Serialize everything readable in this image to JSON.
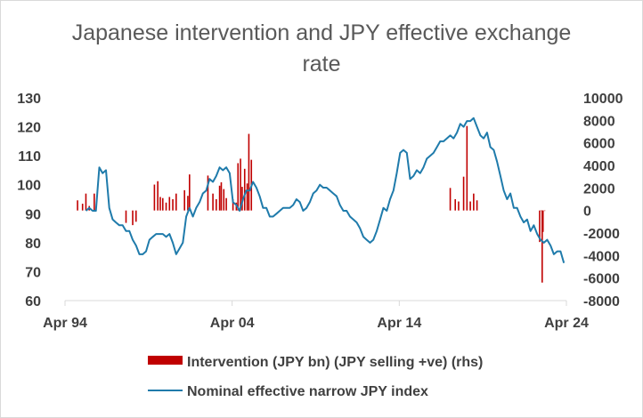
{
  "chart_data": {
    "type": "line",
    "title": "Japanese intervention and JPY effective exchange rate",
    "title_lines": [
      "Japanese intervention and JPY effective exchange",
      "rate"
    ],
    "x_range": [
      1994.25,
      2024.25
    ],
    "x_ticks": [
      {
        "value": 1994.25,
        "label": "Apr 94"
      },
      {
        "value": 2004.25,
        "label": "Apr 04"
      },
      {
        "value": 2014.25,
        "label": "Apr 14"
      },
      {
        "value": 2024.25,
        "label": "Apr 24"
      }
    ],
    "y_left": {
      "range": [
        60,
        130
      ],
      "ticks": [
        60,
        70,
        80,
        90,
        100,
        110,
        120,
        130
      ]
    },
    "y_right": {
      "range": [
        -8000,
        10000
      ],
      "ticks": [
        -8000,
        -6000,
        -4000,
        -2000,
        0,
        2000,
        4000,
        6000,
        8000,
        10000
      ],
      "labels": [
        "-8000",
        "-6000",
        "-4000",
        "-2000",
        "0",
        "2000",
        "4000",
        "6000",
        "8000",
        "10000"
      ]
    },
    "grid": false,
    "legend": "bottom",
    "series": [
      {
        "name": "Intervention (JPY bn) (JPY selling +ve) (rhs)",
        "kind": "bar",
        "axis": "right",
        "color": "#c00000",
        "points": [
          [
            1995.0,
            900
          ],
          [
            1995.3,
            600
          ],
          [
            1995.5,
            1500
          ],
          [
            1995.7,
            400
          ],
          [
            1996.0,
            1500
          ],
          [
            1997.9,
            -1100
          ],
          [
            1998.3,
            -1300
          ],
          [
            1998.5,
            -1000
          ],
          [
            1999.6,
            2300
          ],
          [
            1999.8,
            2600
          ],
          [
            1999.95,
            1200
          ],
          [
            2000.1,
            1100
          ],
          [
            2000.3,
            700
          ],
          [
            2000.5,
            1200
          ],
          [
            2000.7,
            1000
          ],
          [
            2000.9,
            1500
          ],
          [
            2001.4,
            1800
          ],
          [
            2001.6,
            1300
          ],
          [
            2001.7,
            3200
          ],
          [
            2002.8,
            3100
          ],
          [
            2003.1,
            1500
          ],
          [
            2003.3,
            1000
          ],
          [
            2003.5,
            2200
          ],
          [
            2003.6,
            2500
          ],
          [
            2003.75,
            1900
          ],
          [
            2003.9,
            1100
          ],
          [
            2004.3,
            1000
          ],
          [
            2004.5,
            700
          ],
          [
            2004.6,
            4200
          ],
          [
            2004.75,
            4600
          ],
          [
            2004.85,
            2100
          ],
          [
            2005.0,
            3700
          ],
          [
            2005.15,
            2400
          ],
          [
            2005.25,
            6800
          ],
          [
            2005.4,
            4500
          ],
          [
            2017.3,
            2000
          ],
          [
            2017.6,
            1000
          ],
          [
            2017.8,
            800
          ],
          [
            2018.1,
            3000
          ],
          [
            2018.3,
            7500
          ],
          [
            2018.5,
            800
          ],
          [
            2018.7,
            1500
          ],
          [
            2018.9,
            900
          ],
          [
            2022.65,
            -2800
          ],
          [
            2022.75,
            0
          ],
          [
            2022.8,
            -6400
          ],
          [
            2022.85,
            -1900
          ],
          [
            2022.95,
            0
          ]
        ]
      },
      {
        "name": "Nominal effective narrow JPY index",
        "kind": "line",
        "axis": "left",
        "color": "#1f7bab",
        "points": [
          [
            1995.5,
            91
          ],
          [
            1995.7,
            92
          ],
          [
            1995.9,
            91
          ],
          [
            1996.1,
            91
          ],
          [
            1996.3,
            106
          ],
          [
            1996.5,
            104
          ],
          [
            1996.7,
            105
          ],
          [
            1996.9,
            92
          ],
          [
            1997.1,
            88
          ],
          [
            1997.3,
            87
          ],
          [
            1997.5,
            86
          ],
          [
            1997.7,
            86
          ],
          [
            1997.9,
            84
          ],
          [
            1998.1,
            84
          ],
          [
            1998.3,
            81
          ],
          [
            1998.5,
            79
          ],
          [
            1998.7,
            76
          ],
          [
            1998.9,
            76
          ],
          [
            1999.1,
            77
          ],
          [
            1999.3,
            81
          ],
          [
            1999.5,
            82
          ],
          [
            1999.7,
            83
          ],
          [
            1999.9,
            83
          ],
          [
            2000.1,
            83
          ],
          [
            2000.3,
            82
          ],
          [
            2000.5,
            83
          ],
          [
            2000.7,
            80
          ],
          [
            2000.9,
            76
          ],
          [
            2001.1,
            78
          ],
          [
            2001.3,
            80
          ],
          [
            2001.5,
            89
          ],
          [
            2001.7,
            92
          ],
          [
            2001.9,
            89
          ],
          [
            2002.1,
            92
          ],
          [
            2002.3,
            94
          ],
          [
            2002.5,
            97
          ],
          [
            2002.7,
            98
          ],
          [
            2002.9,
            102
          ],
          [
            2003.1,
            101
          ],
          [
            2003.3,
            103
          ],
          [
            2003.5,
            106
          ],
          [
            2003.7,
            105
          ],
          [
            2003.9,
            106
          ],
          [
            2004.1,
            104
          ],
          [
            2004.3,
            94
          ],
          [
            2004.5,
            93
          ],
          [
            2004.7,
            91
          ],
          [
            2004.9,
            95
          ],
          [
            2005.1,
            98
          ],
          [
            2005.3,
            98
          ],
          [
            2005.5,
            101
          ],
          [
            2005.7,
            99
          ],
          [
            2005.9,
            96
          ],
          [
            2006.1,
            92
          ],
          [
            2006.3,
            92
          ],
          [
            2006.5,
            89
          ],
          [
            2006.7,
            89
          ],
          [
            2006.9,
            90
          ],
          [
            2007.1,
            91
          ],
          [
            2007.3,
            92
          ],
          [
            2007.5,
            92
          ],
          [
            2007.7,
            92
          ],
          [
            2007.9,
            93
          ],
          [
            2008.1,
            95
          ],
          [
            2008.3,
            94
          ],
          [
            2008.5,
            91
          ],
          [
            2008.7,
            92
          ],
          [
            2008.9,
            94
          ],
          [
            2009.1,
            97
          ],
          [
            2009.3,
            98
          ],
          [
            2009.5,
            100
          ],
          [
            2009.7,
            99
          ],
          [
            2009.9,
            99
          ],
          [
            2010.1,
            98
          ],
          [
            2010.3,
            97
          ],
          [
            2010.5,
            96
          ],
          [
            2010.7,
            93
          ],
          [
            2010.9,
            91
          ],
          [
            2011.1,
            91
          ],
          [
            2011.3,
            89
          ],
          [
            2011.5,
            88
          ],
          [
            2011.7,
            87
          ],
          [
            2011.9,
            85
          ],
          [
            2012.1,
            82
          ],
          [
            2012.3,
            81
          ],
          [
            2012.5,
            80
          ],
          [
            2012.7,
            81
          ],
          [
            2012.9,
            84
          ],
          [
            2013.1,
            88
          ],
          [
            2013.3,
            92
          ],
          [
            2013.5,
            91
          ],
          [
            2013.7,
            95
          ],
          [
            2013.9,
            98
          ],
          [
            2014.1,
            104
          ],
          [
            2014.3,
            111
          ],
          [
            2014.5,
            112
          ],
          [
            2014.7,
            111
          ],
          [
            2014.9,
            102
          ],
          [
            2015.1,
            103
          ],
          [
            2015.3,
            105
          ],
          [
            2015.5,
            104
          ],
          [
            2015.7,
            106
          ],
          [
            2015.9,
            109
          ],
          [
            2016.1,
            110
          ],
          [
            2016.3,
            111
          ],
          [
            2016.5,
            113
          ],
          [
            2016.7,
            115
          ],
          [
            2016.9,
            115
          ],
          [
            2017.1,
            116
          ],
          [
            2017.3,
            117
          ],
          [
            2017.5,
            116
          ],
          [
            2017.7,
            118
          ],
          [
            2017.9,
            121
          ],
          [
            2018.1,
            120
          ],
          [
            2018.3,
            122
          ],
          [
            2018.5,
            122
          ],
          [
            2018.7,
            123
          ],
          [
            2018.9,
            120
          ],
          [
            2019.1,
            117
          ],
          [
            2019.3,
            116
          ],
          [
            2019.5,
            118
          ],
          [
            2019.7,
            113
          ],
          [
            2019.9,
            112
          ],
          [
            2020.1,
            108
          ],
          [
            2020.3,
            103
          ],
          [
            2020.5,
            98
          ],
          [
            2020.7,
            95
          ],
          [
            2020.9,
            97
          ],
          [
            2021.1,
            92
          ],
          [
            2021.3,
            92
          ],
          [
            2021.5,
            89
          ],
          [
            2021.7,
            87
          ],
          [
            2021.9,
            88
          ],
          [
            2022.1,
            84
          ],
          [
            2022.3,
            86
          ],
          [
            2022.5,
            83
          ],
          [
            2022.7,
            81
          ],
          [
            2022.9,
            80
          ],
          [
            2023.1,
            81
          ],
          [
            2023.3,
            79
          ],
          [
            2023.5,
            76
          ],
          [
            2023.7,
            77
          ],
          [
            2023.9,
            77
          ],
          [
            2024.1,
            73
          ]
        ]
      }
    ]
  }
}
